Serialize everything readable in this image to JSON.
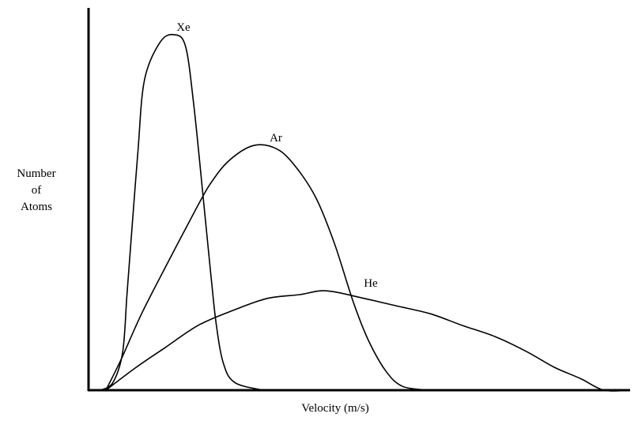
{
  "chart_data": {
    "type": "line",
    "title": "",
    "xlabel": "Velocity (m/s)",
    "ylabel_lines": [
      "Number",
      "of",
      "Atoms"
    ],
    "x_ticks": false,
    "y_ticks": false,
    "grid": false,
    "xlim": [
      0,
      100
    ],
    "ylim": [
      0,
      100
    ],
    "series": [
      {
        "name": "Xe",
        "points": [
          [
            2.2,
            0
          ],
          [
            4.5,
            2
          ],
          [
            6.3,
            10
          ],
          [
            7.1,
            25
          ],
          [
            8.0,
            42
          ],
          [
            9.1,
            62
          ],
          [
            10.3,
            81
          ],
          [
            13.2,
            91
          ],
          [
            15.8,
            93
          ],
          [
            17.9,
            90
          ],
          [
            19.4,
            75
          ],
          [
            21.2,
            50
          ],
          [
            22.6,
            30
          ],
          [
            23.6,
            17
          ],
          [
            24.9,
            7
          ],
          [
            27.0,
            2
          ],
          [
            32.2,
            0
          ]
        ]
      },
      {
        "name": "Ar",
        "points": [
          [
            3.2,
            0
          ],
          [
            6.0,
            8
          ],
          [
            9.8,
            20
          ],
          [
            14.5,
            33
          ],
          [
            19.7,
            47
          ],
          [
            22.5,
            54
          ],
          [
            25.9,
            60
          ],
          [
            30.5,
            64
          ],
          [
            34.9,
            63
          ],
          [
            38.5,
            58
          ],
          [
            42.1,
            50
          ],
          [
            45.5,
            38
          ],
          [
            48.9,
            23
          ],
          [
            51.7,
            13
          ],
          [
            54.9,
            5
          ],
          [
            58.0,
            1
          ],
          [
            63.0,
            0
          ]
        ]
      },
      {
        "name": "He",
        "points": [
          [
            3.2,
            0
          ],
          [
            8.8,
            6
          ],
          [
            14.0,
            11
          ],
          [
            20.3,
            17
          ],
          [
            26.9,
            21
          ],
          [
            33.0,
            24
          ],
          [
            39.0,
            25
          ],
          [
            43.9,
            26
          ],
          [
            50.9,
            24
          ],
          [
            57.0,
            22
          ],
          [
            63.1,
            20
          ],
          [
            68.9,
            17
          ],
          [
            75.1,
            14
          ],
          [
            81.0,
            10
          ],
          [
            86.0,
            6
          ],
          [
            90.9,
            3
          ],
          [
            95.2,
            0
          ],
          [
            100,
            0
          ]
        ]
      }
    ],
    "annotations": [
      {
        "text": "Xe",
        "x": 15.8,
        "y": 93
      },
      {
        "text": "Ar",
        "x": 33.0,
        "y": 64
      },
      {
        "text": "He",
        "x": 50.4,
        "y": 26
      }
    ]
  }
}
